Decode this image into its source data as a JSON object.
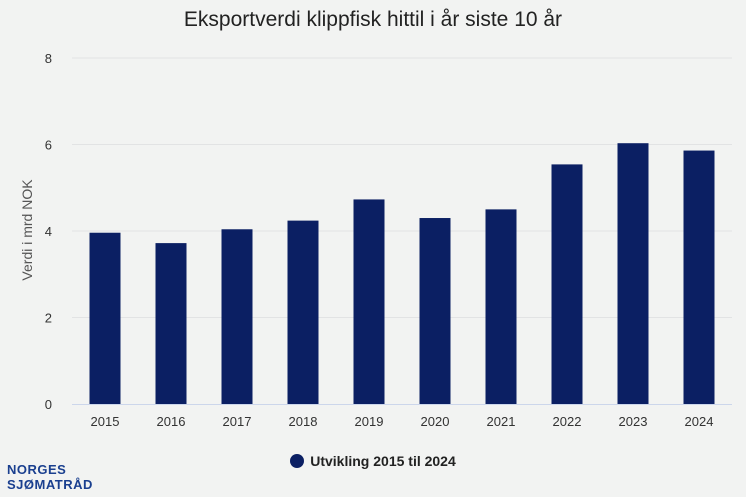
{
  "colors": {
    "bar": "#0b1f63",
    "grid": "#e2e3e4",
    "axis": "#ccd6eb",
    "text": "#333333"
  },
  "logo": {
    "line1": "NORGES",
    "line2": "SJØMATRÅD"
  },
  "chart_data": {
    "type": "bar",
    "title": "Eksportverdi klippfisk hittil i år siste 10 år",
    "xlabel": "",
    "ylabel": "Verdi i mrd NOK",
    "ylim": [
      0,
      8
    ],
    "yticks": [
      "0",
      "2",
      "4",
      "6",
      "8"
    ],
    "grid": true,
    "legend_position": "bottom-center",
    "categories": [
      "2015",
      "2016",
      "2017",
      "2018",
      "2019",
      "2020",
      "2021",
      "2022",
      "2023",
      "2024"
    ],
    "series": [
      {
        "name": "Utvikling 2015 til 2024",
        "values": [
          3.96,
          3.72,
          4.04,
          4.24,
          4.73,
          4.3,
          4.5,
          5.54,
          6.03,
          5.86
        ]
      }
    ]
  }
}
